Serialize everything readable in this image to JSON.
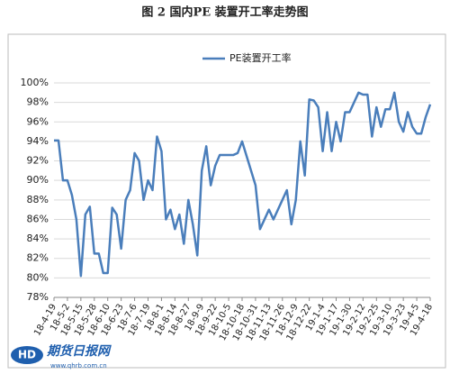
{
  "chart_data": {
    "type": "line",
    "title": "图 2 国内PE 装置开工率走势图",
    "categories": [
      "18-4-19",
      null,
      null,
      "18-5-2",
      null,
      null,
      "18-5-15",
      null,
      null,
      "18-5-28",
      null,
      null,
      "18-6-10",
      null,
      null,
      "18-6-23",
      null,
      null,
      "18-7-6",
      null,
      null,
      "18-7-19",
      null,
      null,
      "18-8-1",
      null,
      null,
      "18-8-14",
      null,
      null,
      "18-8-27",
      null,
      null,
      "18-9-9",
      null,
      null,
      "18-9-22",
      null,
      null,
      "18-10-5",
      null,
      null,
      "18-10-18",
      null,
      null,
      "18-10-31",
      null,
      null,
      "18-11-13",
      null,
      null,
      "18-11-26",
      null,
      null,
      "18-12-9",
      null,
      null,
      "18-12-22",
      null,
      null,
      "19-1-4",
      null,
      null,
      "19-1-17",
      null,
      null,
      "19-1-30",
      null,
      null,
      "19-2-12",
      null,
      null,
      "19-2-25",
      null,
      null,
      "19-3-10",
      null,
      null,
      "19-3-23",
      null,
      null,
      "19-4-5",
      null,
      null,
      "19-4-18"
    ],
    "series": [
      {
        "name": "PE装置开工率",
        "color": "#4a7ebb",
        "values": [
          94.1,
          94.1,
          90.0,
          90.0,
          88.5,
          86.0,
          80.2,
          86.5,
          87.3,
          82.5,
          82.5,
          80.5,
          80.5,
          87.2,
          86.5,
          83.0,
          88.0,
          89.0,
          92.8,
          92.0,
          88.0,
          90.0,
          89.0,
          94.5,
          93.0,
          86.0,
          87.0,
          85.0,
          86.5,
          83.5,
          88.0,
          85.5,
          82.3,
          91.0,
          93.5,
          89.5,
          91.5,
          92.6,
          92.6,
          92.6,
          92.6,
          92.8,
          94.0,
          92.5,
          91.0,
          89.5,
          85.0,
          86.0,
          87.0,
          86.0,
          87.0,
          88.0,
          89.0,
          85.5,
          88.0,
          94.0,
          90.5,
          98.3,
          98.2,
          97.5,
          93.0,
          97.0,
          93.0,
          96.0,
          94.0,
          97.0,
          97.0,
          98.0,
          99.0,
          98.8,
          98.8,
          94.5,
          97.5,
          95.5,
          97.3,
          97.3,
          99.0,
          96.0,
          95.0,
          97.0,
          95.5,
          94.8,
          94.8,
          96.5,
          97.8
        ]
      }
    ],
    "ylim": [
      78,
      100
    ],
    "yticks": [
      {
        "value": 78,
        "label": "78%"
      },
      {
        "value": 80,
        "label": "80%"
      },
      {
        "value": 82,
        "label": "82%"
      },
      {
        "value": 84,
        "label": "84%"
      },
      {
        "value": 86,
        "label": "86%"
      },
      {
        "value": 88,
        "label": "88%"
      },
      {
        "value": 90,
        "label": "90%"
      },
      {
        "value": 92,
        "label": "92%"
      },
      {
        "value": 94,
        "label": "94%"
      },
      {
        "value": 96,
        "label": "96%"
      },
      {
        "value": 98,
        "label": "98%"
      },
      {
        "value": 100,
        "label": "100%"
      }
    ],
    "grid": true,
    "legend": "top"
  },
  "watermark": {
    "name": "期货日报网",
    "url": "www.qhrb.com.cn"
  }
}
